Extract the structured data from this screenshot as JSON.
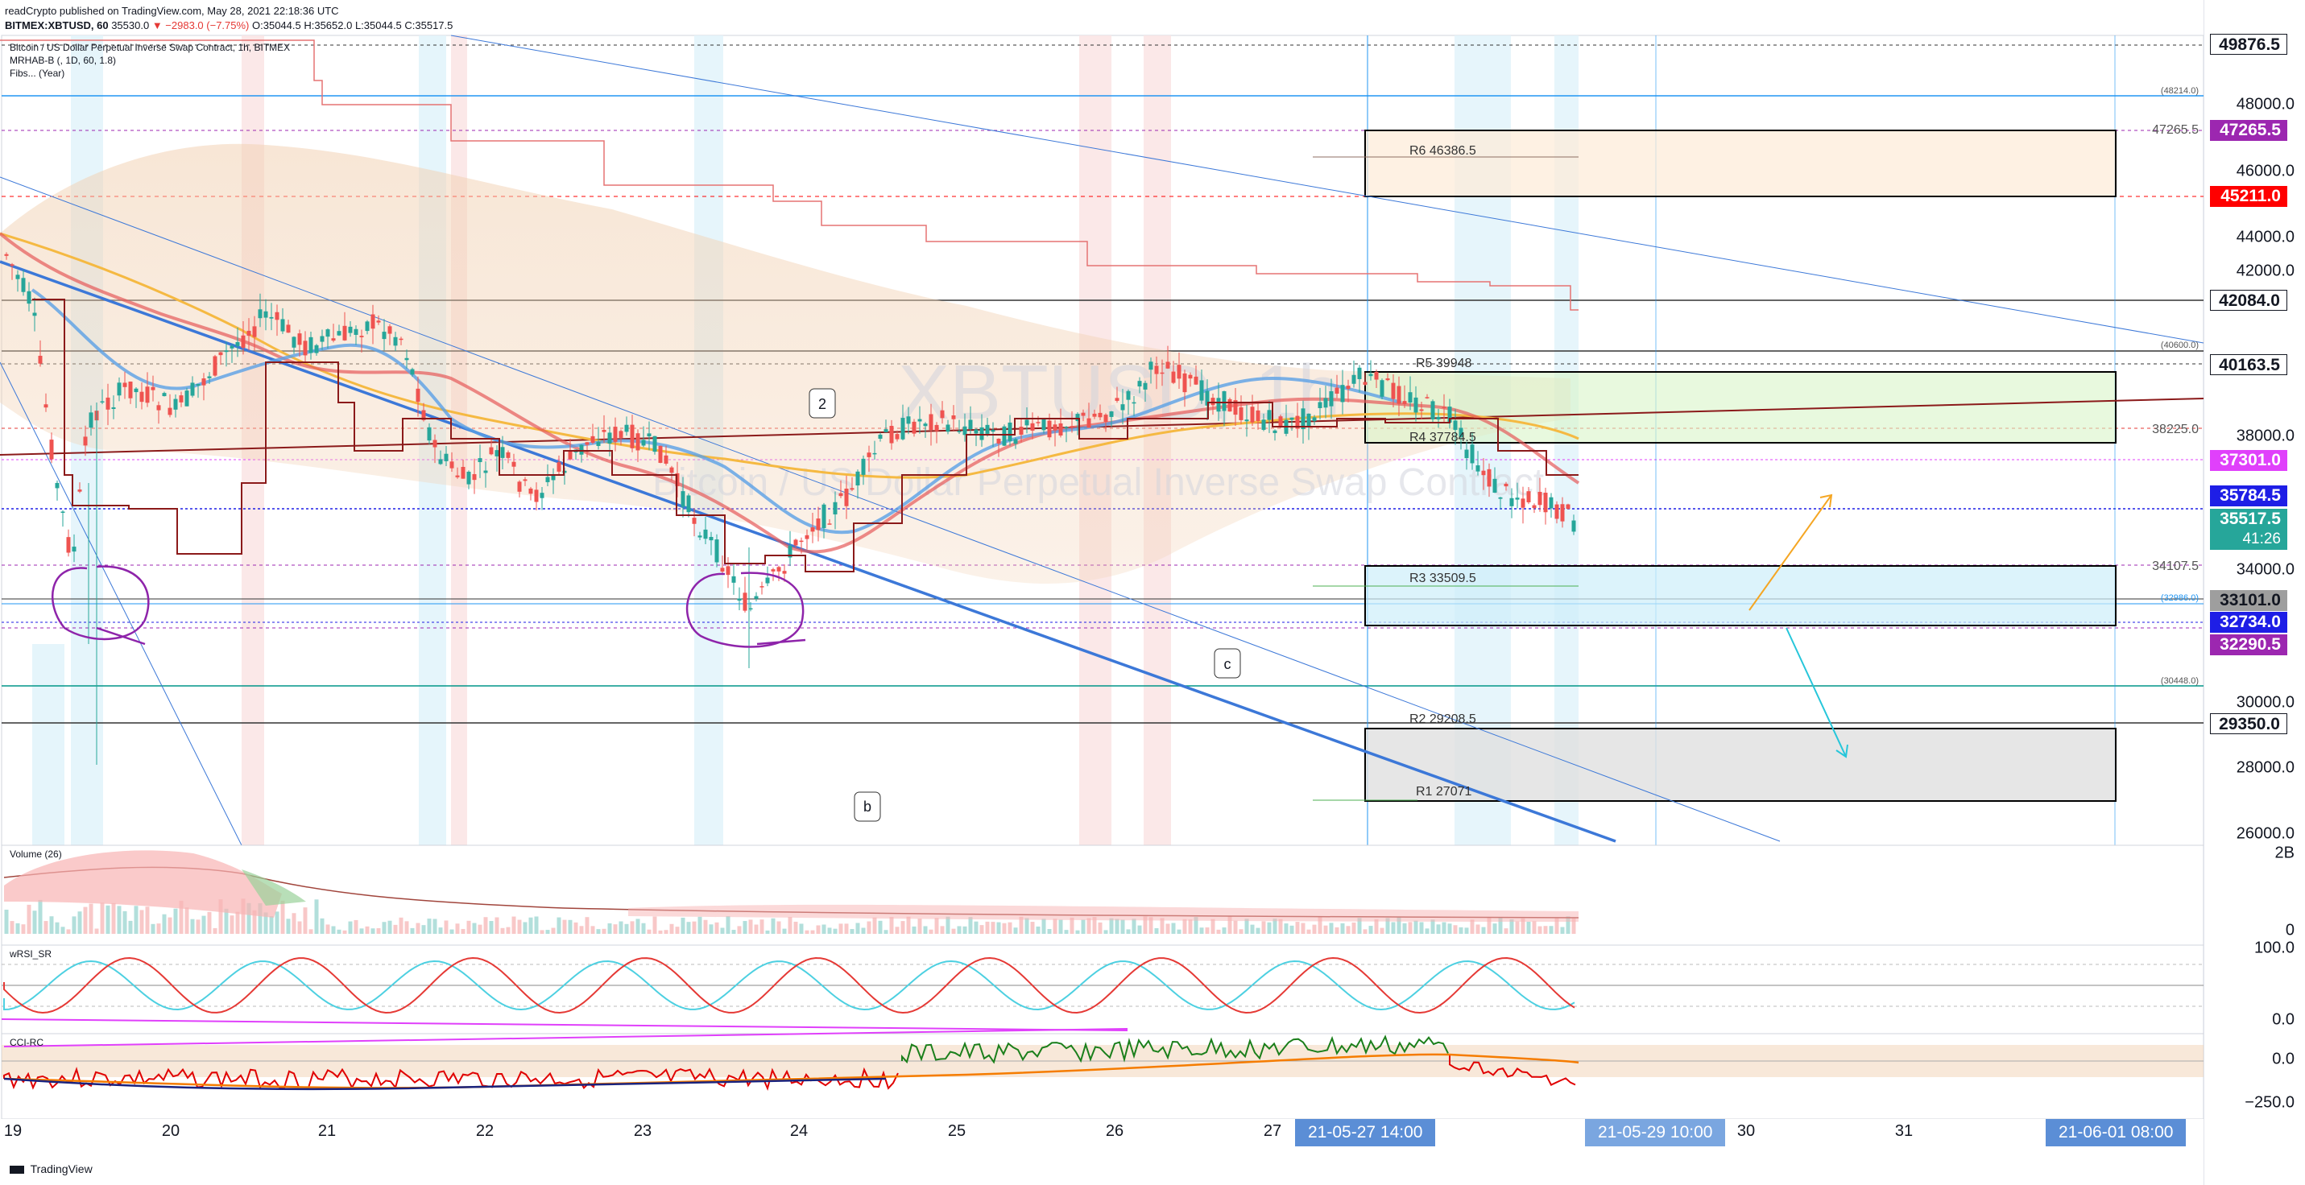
{
  "header": {
    "publisher_line": "readCrypto published on TradingView.com, May 28, 2021 22:18:36 UTC",
    "symbol_line_prefix": "BITMEX:XBTUSD, 60",
    "price": "35530.0",
    "change": "▼ −2983.0 (−7.75%)",
    "ohlc": "O:35044.5  H:35652.0  L:35044.5  C:35517.5"
  },
  "legend": {
    "main": "Bitcoin / US Dollar Perpetual Inverse Swap Contract, 1h, BITMEX",
    "mrhab": "MRHAB-B (, 1D, 60, 1.8)",
    "fibs": "Fibs... (Year)"
  },
  "watermark_text": {
    "big": "XBTUSD, 1h",
    "sub": "Bitcoin / US Dollar Perpetual Inverse Swap Contract"
  },
  "pane_labels": {
    "volume": "Volume (26)",
    "wrsi": "wRSI_SR",
    "cci": "CCI-RC"
  },
  "annotations": {
    "wave2": "2",
    "wavec": "c",
    "waveb": "b"
  },
  "pivots": {
    "r6": "R6 46386.5",
    "r5": "R5 39948",
    "r4": "R4 37784.5",
    "r3": "R3 33509.5",
    "r2": "R2 29208.5",
    "r1": "R1 27071"
  },
  "level_labels": {
    "l48214": "(48214.0)",
    "l47265": "47265.5",
    "l40600": "(40600.0)",
    "l38225": "38225.0",
    "l34107": "34107.5",
    "l32986": "(32986.0)",
    "l30448": "(30448.0)"
  },
  "price_axis": {
    "labels": [
      "48000.0",
      "46000.0",
      "44000.0",
      "42000.0",
      "38000.0",
      "34000.0",
      "30000.0",
      "28000.0",
      "26000.0"
    ]
  },
  "price_tags": [
    {
      "id": "t49876",
      "text": "49876.5",
      "bg": "#ffffff",
      "fg": "#131722"
    },
    {
      "id": "t47265",
      "text": "47265.5",
      "bg": "#9c27b0",
      "fg": "#ffffff"
    },
    {
      "id": "t45211",
      "text": "45211.0",
      "bg": "#ff0000",
      "fg": "#ffffff"
    },
    {
      "id": "t42084",
      "text": "42084.0",
      "bg": "#ffffff",
      "fg": "#131722"
    },
    {
      "id": "t40163",
      "text": "40163.5",
      "bg": "#ffffff",
      "fg": "#131722"
    },
    {
      "id": "t37301",
      "text": "37301.0",
      "bg": "#e040fb",
      "fg": "#ffffff"
    },
    {
      "id": "t35784",
      "text": "35784.5",
      "bg": "#1e1ee6",
      "fg": "#ffffff"
    },
    {
      "id": "t35517",
      "text": "35517.5",
      "bg": "#26a69a",
      "fg": "#ffffff"
    },
    {
      "id": "t4126",
      "text": "41:26",
      "bg": "#26a69a",
      "fg": "#ffffff"
    },
    {
      "id": "t33101",
      "text": "33101.0",
      "bg": "#9e9e9e",
      "fg": "#131722"
    },
    {
      "id": "t32734",
      "text": "32734.0",
      "bg": "#1e1ee6",
      "fg": "#ffffff"
    },
    {
      "id": "t32290",
      "text": "32290.5",
      "bg": "#9c27b0",
      "fg": "#ffffff"
    },
    {
      "id": "t29350",
      "text": "29350.0",
      "bg": "#ffffff",
      "fg": "#131722"
    }
  ],
  "volume_axis": {
    "top": "2B",
    "bottom": "0"
  },
  "wrsi_axis": {
    "top": "100.0",
    "bottom": "0.0"
  },
  "cci_axis": {
    "top": "0.0",
    "bottom": "−250.0"
  },
  "time_axis": {
    "labels": [
      "19",
      "20",
      "21",
      "22",
      "23",
      "24",
      "25",
      "26",
      "27",
      "30",
      "31"
    ],
    "highlight_1": "21-05-27   14:00",
    "highlight_2": "21-05-29   10:00",
    "highlight_3": "21-06-01   08:00"
  },
  "branding": "TradingView"
}
